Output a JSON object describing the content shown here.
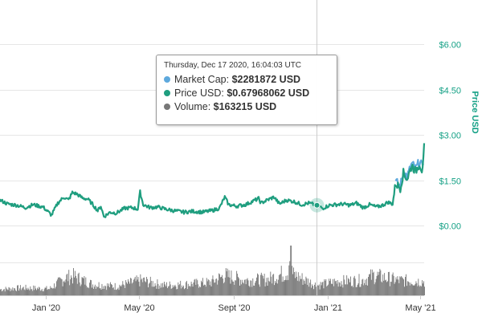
{
  "colors": {
    "market_cap": "#5ea9dd",
    "price": "#1f9e7f",
    "volume": "#777777",
    "accent": "#14a085"
  },
  "tooltip": {
    "date": "Thursday, Dec 17 2020, 16:04:03 UTC",
    "rows": [
      {
        "label": "Market Cap:",
        "value": "$2281872 USD",
        "color": "#5ea9dd"
      },
      {
        "label": "Price USD:",
        "value": "$0.67968062 USD",
        "color": "#1f9e7f"
      },
      {
        "label": "Volume:",
        "value": "$163215 USD",
        "color": "#777777"
      }
    ]
  },
  "chart_data": {
    "type": "line",
    "ylabel": "Price USD",
    "yaxis_position": "right",
    "ylim": [
      -0.15,
      6.3
    ],
    "y_ticks": [
      0,
      1.5,
      3,
      4.5,
      6
    ],
    "y_tick_labels": [
      "$0.00",
      "$1.50",
      "$3.00",
      "$4.50",
      "$6.00"
    ],
    "x_tick_labels": [
      "Jan '20",
      "May '20",
      "Sept '20",
      "Jan '21",
      "May '21"
    ],
    "x_ticks": [
      "2020-01-01",
      "2020-05-01",
      "2020-09-01",
      "2021-01-01",
      "2021-05-01"
    ],
    "xlim": [
      "2019-11-02",
      "2021-05-06"
    ],
    "crosshair_date": "2020-12-17",
    "series": [
      {
        "key": "price",
        "values": [
          [
            "2019-11-02",
            0.85
          ],
          [
            "2019-11-12",
            0.72
          ],
          [
            "2019-11-24",
            0.68
          ],
          [
            "2019-12-05",
            0.6
          ],
          [
            "2019-12-15",
            0.7
          ],
          [
            "2019-12-28",
            0.62
          ],
          [
            "2020-01-08",
            0.35
          ],
          [
            "2020-01-16",
            0.75
          ],
          [
            "2020-01-24",
            0.95
          ],
          [
            "2020-01-30",
            0.85
          ],
          [
            "2020-02-04",
            1.1
          ],
          [
            "2020-02-10",
            1.05
          ],
          [
            "2020-02-17",
            0.92
          ],
          [
            "2020-02-24",
            0.88
          ],
          [
            "2020-03-01",
            0.72
          ],
          [
            "2020-03-08",
            0.5
          ],
          [
            "2020-03-12",
            0.65
          ],
          [
            "2020-03-16",
            0.3
          ],
          [
            "2020-03-24",
            0.45
          ],
          [
            "2020-04-01",
            0.42
          ],
          [
            "2020-04-12",
            0.58
          ],
          [
            "2020-04-22",
            0.6
          ],
          [
            "2020-04-29",
            0.55
          ],
          [
            "2020-05-02",
            1.12
          ],
          [
            "2020-05-06",
            0.7
          ],
          [
            "2020-05-15",
            0.6
          ],
          [
            "2020-05-25",
            0.62
          ],
          [
            "2020-06-04",
            0.55
          ],
          [
            "2020-06-15",
            0.5
          ],
          [
            "2020-06-28",
            0.45
          ],
          [
            "2020-07-10",
            0.48
          ],
          [
            "2020-07-22",
            0.45
          ],
          [
            "2020-08-03",
            0.5
          ],
          [
            "2020-08-13",
            0.58
          ],
          [
            "2020-08-20",
            0.95
          ],
          [
            "2020-08-25",
            0.7
          ],
          [
            "2020-09-04",
            0.65
          ],
          [
            "2020-09-16",
            0.7
          ],
          [
            "2020-09-26",
            0.82
          ],
          [
            "2020-10-03",
            0.9
          ],
          [
            "2020-10-06",
            0.75
          ],
          [
            "2020-10-14",
            0.85
          ],
          [
            "2020-10-23",
            0.95
          ],
          [
            "2020-10-30",
            0.72
          ],
          [
            "2020-11-08",
            0.85
          ],
          [
            "2020-11-18",
            0.8
          ],
          [
            "2020-11-28",
            0.7
          ],
          [
            "2020-12-07",
            0.75
          ],
          [
            "2020-12-17",
            0.68
          ],
          [
            "2020-12-25",
            0.58
          ],
          [
            "2021-01-03",
            0.68
          ],
          [
            "2021-01-12",
            0.7
          ],
          [
            "2021-01-20",
            0.72
          ],
          [
            "2021-01-30",
            0.68
          ],
          [
            "2021-02-07",
            0.75
          ],
          [
            "2021-02-16",
            0.6
          ],
          [
            "2021-02-24",
            0.7
          ],
          [
            "2021-03-05",
            0.62
          ],
          [
            "2021-03-13",
            0.68
          ],
          [
            "2021-03-20",
            0.78
          ],
          [
            "2021-03-26",
            0.72
          ],
          [
            "2021-03-30",
            1.4
          ],
          [
            "2021-04-05",
            1.25
          ],
          [
            "2021-04-09",
            1.75
          ],
          [
            "2021-04-14",
            1.55
          ],
          [
            "2021-04-20",
            2.0
          ],
          [
            "2021-04-25",
            1.8
          ],
          [
            "2021-04-30",
            2.05
          ],
          [
            "2021-05-03",
            1.85
          ],
          [
            "2021-05-05",
            2.15
          ],
          [
            "2021-05-06",
            2.6
          ]
        ]
      },
      {
        "key": "market_cap",
        "values": [
          [
            "2021-03-30",
            1.45
          ],
          [
            "2021-04-05",
            1.3
          ],
          [
            "2021-04-09",
            1.8
          ],
          [
            "2021-04-14",
            1.62
          ],
          [
            "2021-04-20",
            2.05
          ],
          [
            "2021-04-25",
            1.88
          ],
          [
            "2021-04-30",
            2.12
          ],
          [
            "2021-05-03",
            1.95
          ],
          [
            "2021-05-05",
            2.2
          ]
        ]
      },
      {
        "key": "volume",
        "relative_values": [
          [
            "2019-11-02",
            0.12
          ],
          [
            "2019-12-01",
            0.15
          ],
          [
            "2020-01-05",
            0.13
          ],
          [
            "2020-01-25",
            0.35
          ],
          [
            "2020-02-05",
            0.38
          ],
          [
            "2020-03-01",
            0.22
          ],
          [
            "2020-04-01",
            0.18
          ],
          [
            "2020-05-03",
            0.3
          ],
          [
            "2020-06-01",
            0.2
          ],
          [
            "2020-07-01",
            0.22
          ],
          [
            "2020-08-01",
            0.26
          ],
          [
            "2020-08-20",
            0.4
          ],
          [
            "2020-09-15",
            0.3
          ],
          [
            "2020-10-15",
            0.32
          ],
          [
            "2020-11-10",
            0.48
          ],
          [
            "2020-11-13",
            1.0
          ],
          [
            "2020-11-16",
            0.42
          ],
          [
            "2020-12-17",
            0.2
          ],
          [
            "2021-01-15",
            0.28
          ],
          [
            "2021-02-15",
            0.3
          ],
          [
            "2021-03-01",
            0.4
          ],
          [
            "2021-04-01",
            0.3
          ],
          [
            "2021-05-06",
            0.28
          ]
        ]
      }
    ]
  }
}
